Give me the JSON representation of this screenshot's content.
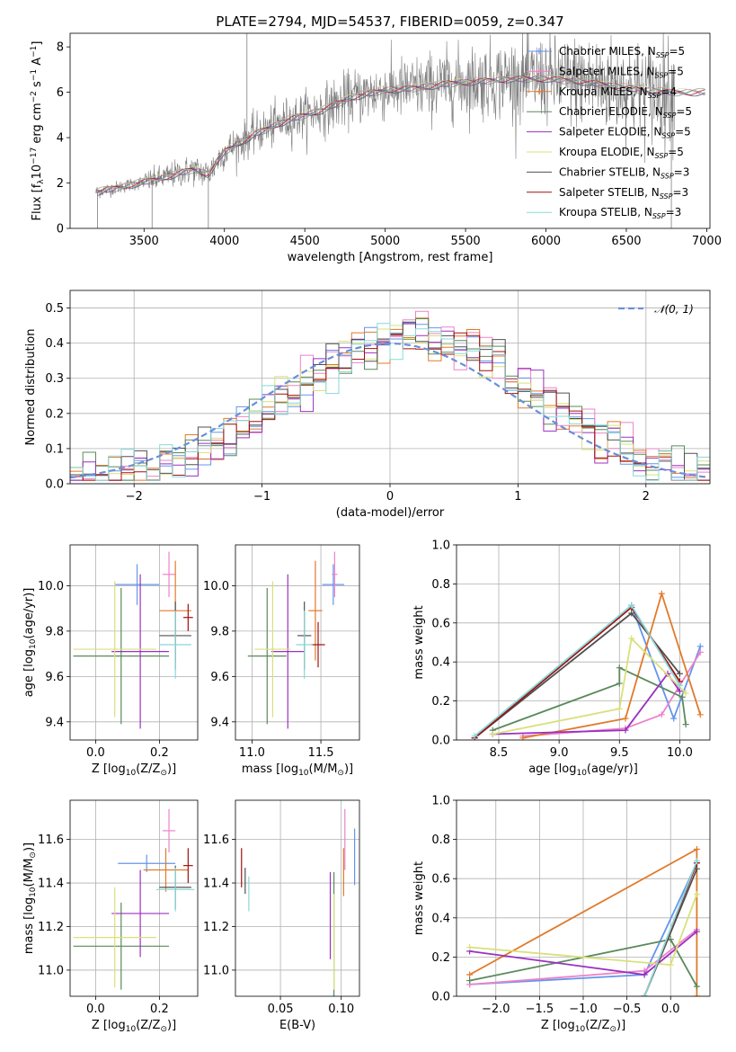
{
  "title": "PLATE=2794, MJD=54537, FIBERID=0059, z=0.347",
  "colors": {
    "Chabrier MILES": "#6495ed",
    "Salpeter MILES": "#ee82c8",
    "Kroupa MILES": "#e07a2a",
    "Chabrier ELODIE": "#5a8a5a",
    "Salpeter ELODIE": "#9b30c0",
    "Kroupa ELODIE": "#d9e07a",
    "Chabrier STELIB": "#505050",
    "Salpeter STELIB": "#a01010",
    "Kroupa STELIB": "#88d8d8",
    "data": "#7f7f7f",
    "normal": "#6a8fd8"
  },
  "legend_spectrum": [
    {
      "prefix": "Chabrier MILES, N",
      "sub": "SSP",
      "suffix": "=5",
      "model": "Chabrier MILES",
      "marker": "+"
    },
    {
      "prefix": "Salpeter MILES, N",
      "sub": "SSP",
      "suffix": "=5",
      "model": "Salpeter MILES",
      "marker": "+"
    },
    {
      "prefix": "Kroupa MILES, N",
      "sub": "SSP",
      "suffix": "=4",
      "model": "Kroupa MILES",
      "marker": "+"
    },
    {
      "prefix": "Chabrier ELODIE, N",
      "sub": "SSP",
      "suffix": "=5",
      "model": "Chabrier ELODIE",
      "marker": ""
    },
    {
      "prefix": "Salpeter ELODIE, N",
      "sub": "SSP",
      "suffix": "=5",
      "model": "Salpeter ELODIE",
      "marker": ""
    },
    {
      "prefix": "Kroupa ELODIE, N",
      "sub": "SSP",
      "suffix": "=5",
      "model": "Kroupa ELODIE",
      "marker": ""
    },
    {
      "prefix": "Chabrier STELIB, N",
      "sub": "SSP",
      "suffix": "=3",
      "model": "Chabrier STELIB",
      "marker": ""
    },
    {
      "prefix": "Salpeter STELIB, N",
      "sub": "SSP",
      "suffix": "=3",
      "model": "Salpeter STELIB",
      "marker": ""
    },
    {
      "prefix": "Kroupa STELIB, N",
      "sub": "SSP",
      "suffix": "=3",
      "model": "Kroupa STELIB",
      "marker": ""
    }
  ],
  "chart_data": [
    {
      "id": "spectrum",
      "type": "line",
      "xlabel": "wavelength [Angstrom, rest frame]",
      "ylabel_parts": [
        "Flux [f",
        "λ",
        "10",
        "−17",
        " erg cm",
        "−2",
        " s",
        "−1",
        " A",
        "−1",
        "]"
      ],
      "xlim": [
        3040,
        7020
      ],
      "ylim": [
        0,
        8.6
      ],
      "xticks": [
        3500,
        4000,
        4500,
        5000,
        5500,
        6000,
        6500,
        7000
      ],
      "yticks": [
        0,
        2,
        4,
        6,
        8
      ],
      "continuum_points": [
        [
          3200,
          1.6
        ],
        [
          3400,
          1.9
        ],
        [
          3600,
          2.2
        ],
        [
          3800,
          2.6
        ],
        [
          3900,
          2.4
        ],
        [
          4000,
          3.4
        ],
        [
          4200,
          4.2
        ],
        [
          4400,
          4.8
        ],
        [
          4600,
          5.2
        ],
        [
          4800,
          5.8
        ],
        [
          5000,
          6.1
        ],
        [
          5200,
          6.2
        ],
        [
          5400,
          6.4
        ],
        [
          5600,
          6.5
        ],
        [
          5800,
          6.6
        ],
        [
          6000,
          6.6
        ],
        [
          6200,
          6.5
        ],
        [
          6400,
          6.3
        ],
        [
          6600,
          6.1
        ],
        [
          6800,
          6.0
        ],
        [
          7000,
          6.0
        ]
      ],
      "model_range": [
        3210,
        6990
      ],
      "data_range": [
        3200,
        6800
      ],
      "outlier_spikes": [
        [
          3210,
          0
        ],
        [
          3550,
          0
        ],
        [
          3900,
          0
        ],
        [
          4140,
          8.6
        ],
        [
          6780,
          0
        ]
      ]
    },
    {
      "id": "residuals",
      "type": "line",
      "xlabel": "(data-model)/error",
      "ylabel": "Normed distribution",
      "xlim": [
        -2.5,
        2.5
      ],
      "ylim": [
        0,
        0.55
      ],
      "xticks": [
        -2,
        -1,
        0,
        1,
        2
      ],
      "yticks": [
        0.0,
        0.1,
        0.2,
        0.3,
        0.4,
        0.5
      ],
      "legend_label": "𝒩(0, 1)",
      "normal_mean": 0.0,
      "normal_sigma": 1.0,
      "hist_bin_width": 0.1,
      "hist_peak_shift": 0.32,
      "hist_peak": 0.5
    },
    {
      "id": "z_age",
      "type": "scatter",
      "xlabel_parts": [
        "Z [log",
        "10",
        "(Z/Z",
        "⊙",
        ")]"
      ],
      "ylabel_parts": [
        "age  [log",
        "10",
        "(age/yr)]"
      ],
      "xlim": [
        -0.08,
        0.32
      ],
      "ylim": [
        9.32,
        10.18
      ],
      "xticks": [
        0.0,
        0.2
      ],
      "yticks": [
        9.4,
        9.6,
        9.8,
        10.0
      ],
      "points": [
        {
          "model": "Chabrier MILES",
          "x": 0.13,
          "y": 10.005,
          "xerr": 0.07,
          "yerr": 0.09
        },
        {
          "model": "Salpeter MILES",
          "x": 0.23,
          "y": 10.05,
          "xerr": 0.02,
          "yerr": 0.1
        },
        {
          "model": "Kroupa MILES",
          "x": 0.25,
          "y": 9.89,
          "xerr": 0.05,
          "yerr": 0.22
        },
        {
          "model": "Chabrier ELODIE",
          "x": 0.08,
          "y": 9.69,
          "xerr": 0.15,
          "yerr": 0.3
        },
        {
          "model": "Salpeter ELODIE",
          "x": 0.14,
          "y": 9.71,
          "xerr": 0.09,
          "yerr": 0.34
        },
        {
          "model": "Kroupa ELODIE",
          "x": 0.06,
          "y": 9.72,
          "xerr": 0.13,
          "yerr": 0.3
        },
        {
          "model": "Chabrier STELIB",
          "x": 0.25,
          "y": 9.78,
          "xerr": 0.05,
          "yerr": 0.15
        },
        {
          "model": "Salpeter STELIB",
          "x": 0.29,
          "y": 9.86,
          "xerr": 0.015,
          "yerr": 0.06
        },
        {
          "model": "Kroupa STELIB",
          "x": 0.25,
          "y": 9.74,
          "xerr": 0.05,
          "yerr": 0.15
        }
      ]
    },
    {
      "id": "mass_age",
      "type": "scatter",
      "xlabel_parts": [
        "mass [log",
        "10",
        "(M/M",
        "⊙",
        ")]"
      ],
      "ylabel_parts": [],
      "xlim": [
        10.88,
        11.78
      ],
      "ylim": [
        9.32,
        10.18
      ],
      "xticks": [
        11.0,
        11.5
      ],
      "yticks": [
        9.4,
        9.6,
        9.8,
        10.0
      ],
      "points": [
        {
          "model": "Chabrier MILES",
          "x": 11.59,
          "y": 10.005,
          "xerr": 0.08,
          "yerr": 0.09
        },
        {
          "model": "Salpeter MILES",
          "x": 11.6,
          "y": 10.05,
          "xerr": 0.02,
          "yerr": 0.1
        },
        {
          "model": "Kroupa MILES",
          "x": 11.46,
          "y": 9.89,
          "xerr": 0.05,
          "yerr": 0.22
        },
        {
          "model": "Chabrier ELODIE",
          "x": 11.11,
          "y": 9.69,
          "xerr": 0.14,
          "yerr": 0.3
        },
        {
          "model": "Salpeter ELODIE",
          "x": 11.26,
          "y": 9.71,
          "xerr": 0.12,
          "yerr": 0.34
        },
        {
          "model": "Kroupa ELODIE",
          "x": 11.15,
          "y": 9.72,
          "xerr": 0.13,
          "yerr": 0.3
        },
        {
          "model": "Chabrier STELIB",
          "x": 11.38,
          "y": 9.78,
          "xerr": 0.05,
          "yerr": 0.15
        },
        {
          "model": "Salpeter STELIB",
          "x": 11.48,
          "y": 9.74,
          "xerr": 0.05,
          "yerr": 0.1
        },
        {
          "model": "Kroupa STELIB",
          "x": 11.38,
          "y": 9.74,
          "xerr": 0.06,
          "yerr": 0.15
        }
      ]
    },
    {
      "id": "age_weight",
      "type": "line",
      "xlabel_parts": [
        "age  [log",
        "10",
        "(age/yr)]"
      ],
      "ylabel": "mass weight",
      "xlim": [
        8.15,
        10.25
      ],
      "ylim": [
        0,
        1
      ],
      "xticks": [
        8.5,
        9.0,
        9.5,
        10.0
      ],
      "yticks": [
        0.0,
        0.2,
        0.4,
        0.6,
        0.8,
        1.0
      ],
      "series": [
        {
          "model": "Chabrier MILES",
          "x": [
            8.3,
            9.6,
            9.95,
            10.17
          ],
          "y": [
            0.01,
            0.69,
            0.11,
            0.48
          ]
        },
        {
          "model": "Salpeter MILES",
          "x": [
            8.7,
            9.55,
            9.85,
            10.17
          ],
          "y": [
            0.02,
            0.06,
            0.13,
            0.45
          ]
        },
        {
          "model": "Kroupa MILES",
          "x": [
            8.7,
            9.55,
            9.85,
            10.17
          ],
          "y": [
            0.01,
            0.11,
            0.75,
            0.13
          ]
        },
        {
          "model": "Chabrier ELODIE",
          "x": [
            8.45,
            9.5,
            9.5,
            10.02,
            10.05
          ],
          "y": [
            0.05,
            0.29,
            0.37,
            0.22,
            0.08
          ]
        },
        {
          "model": "Salpeter ELODIE",
          "x": [
            8.45,
            9.55,
            9.9,
            10.0
          ],
          "y": [
            0.03,
            0.05,
            0.34,
            0.25
          ]
        },
        {
          "model": "Kroupa ELODIE",
          "x": [
            8.45,
            9.5,
            9.6,
            10.05
          ],
          "y": [
            0.03,
            0.16,
            0.52,
            0.24
          ]
        },
        {
          "model": "Chabrier STELIB",
          "x": [
            8.3,
            9.6,
            10.0
          ],
          "y": [
            0.01,
            0.65,
            0.34
          ]
        },
        {
          "model": "Salpeter STELIB",
          "x": [
            8.3,
            9.6,
            10.0
          ],
          "y": [
            0.01,
            0.68,
            0.3
          ]
        },
        {
          "model": "Kroupa STELIB",
          "x": [
            8.3,
            9.6,
            10.0
          ],
          "y": [
            0.02,
            0.69,
            0.28
          ]
        }
      ]
    },
    {
      "id": "z_mass",
      "type": "scatter",
      "xlabel_parts": [
        "Z [log",
        "10",
        "(Z/Z",
        "⊙",
        ")]"
      ],
      "ylabel_parts": [
        "mass [log",
        "10",
        "(M/M",
        "⊙",
        ")]"
      ],
      "xlim": [
        -0.08,
        0.32
      ],
      "ylim": [
        10.88,
        11.78
      ],
      "xticks": [
        0.0,
        0.2
      ],
      "yticks": [
        11.0,
        11.2,
        11.4,
        11.6
      ],
      "points": [
        {
          "model": "Chabrier MILES",
          "x": 0.16,
          "y": 11.49,
          "xerr": 0.09,
          "yerr": 0.04
        },
        {
          "model": "Salpeter MILES",
          "x": 0.23,
          "y": 11.64,
          "xerr": 0.02,
          "yerr": 0.1
        },
        {
          "model": "Kroupa MILES",
          "x": 0.22,
          "y": 11.46,
          "xerr": 0.07,
          "yerr": 0.1
        },
        {
          "model": "Chabrier ELODIE",
          "x": 0.08,
          "y": 11.11,
          "xerr": 0.15,
          "yerr": 0.2
        },
        {
          "model": "Salpeter ELODIE",
          "x": 0.14,
          "y": 11.26,
          "xerr": 0.09,
          "yerr": 0.2
        },
        {
          "model": "Kroupa ELODIE",
          "x": 0.06,
          "y": 11.15,
          "xerr": 0.13,
          "yerr": 0.23
        },
        {
          "model": "Chabrier STELIB",
          "x": 0.25,
          "y": 11.38,
          "xerr": 0.05,
          "yerr": 0.1
        },
        {
          "model": "Salpeter STELIB",
          "x": 0.29,
          "y": 11.48,
          "xerr": 0.015,
          "yerr": 0.08
        },
        {
          "model": "Kroupa STELIB",
          "x": 0.25,
          "y": 11.37,
          "xerr": 0.06,
          "yerr": 0.1
        }
      ]
    },
    {
      "id": "ebv_mass",
      "type": "scatter",
      "xlabel": "E(B-V)",
      "xlim": [
        0.013,
        0.115
      ],
      "ylim": [
        10.88,
        11.78
      ],
      "xticks": [
        0.05,
        0.1
      ],
      "yticks": [
        11.0,
        11.2,
        11.4,
        11.6
      ],
      "points": [
        {
          "model": "Chabrier MILES",
          "x": 0.111,
          "y": 11.52,
          "xerr": 0,
          "yerr": 0.13
        },
        {
          "model": "Salpeter MILES",
          "x": 0.103,
          "y": 11.6,
          "xerr": 0,
          "yerr": 0.14
        },
        {
          "model": "Kroupa MILES",
          "x": 0.102,
          "y": 11.45,
          "xerr": 0,
          "yerr": 0.11
        },
        {
          "model": "Chabrier ELODIE",
          "x": 0.094,
          "y": 11.15,
          "xerr": 0,
          "yerr": 0.3
        },
        {
          "model": "Salpeter ELODIE",
          "x": 0.091,
          "y": 11.25,
          "xerr": 0,
          "yerr": 0.2
        },
        {
          "model": "Kroupa ELODIE",
          "x": 0.094,
          "y": 11.13,
          "xerr": 0,
          "yerr": 0.22
        },
        {
          "model": "Chabrier STELIB",
          "x": 0.021,
          "y": 11.41,
          "xerr": 0,
          "yerr": 0.06
        },
        {
          "model": "Salpeter STELIB",
          "x": 0.018,
          "y": 11.47,
          "xerr": 0,
          "yerr": 0.09
        },
        {
          "model": "Kroupa STELIB",
          "x": 0.024,
          "y": 11.35,
          "xerr": 0,
          "yerr": 0.08
        }
      ]
    },
    {
      "id": "z_weight",
      "type": "line",
      "xlabel_parts": [
        "Z [log",
        "10",
        "(Z/Z",
        "⊙",
        ")]"
      ],
      "ylabel": "mass weight",
      "xlim": [
        -2.45,
        0.45
      ],
      "ylim": [
        0,
        1
      ],
      "xticks": [
        -2.0,
        -1.5,
        -1.0,
        -0.5,
        0.0
      ],
      "yticks": [
        0.0,
        0.2,
        0.4,
        0.6,
        0.8,
        1.0
      ],
      "series": [
        {
          "model": "Chabrier MILES",
          "x": [
            -2.3,
            -0.3,
            0.3
          ],
          "y": [
            0.06,
            0.11,
            0.68
          ]
        },
        {
          "model": "Salpeter MILES",
          "x": [
            -2.3,
            -0.3,
            0.3
          ],
          "y": [
            0.06,
            0.13,
            0.34
          ]
        },
        {
          "model": "Kroupa MILES",
          "x": [
            -2.3,
            0.3,
            0.3
          ],
          "y": [
            0.11,
            0.75,
            0.0
          ]
        },
        {
          "model": "Chabrier ELODIE",
          "x": [
            -2.3,
            0.0,
            0.3
          ],
          "y": [
            0.08,
            0.29,
            0.05
          ]
        },
        {
          "model": "Salpeter ELODIE",
          "x": [
            -2.3,
            -0.3,
            0.3
          ],
          "y": [
            0.23,
            0.11,
            0.33
          ]
        },
        {
          "model": "Kroupa ELODIE",
          "x": [
            -2.3,
            0.0,
            0.3
          ],
          "y": [
            0.25,
            0.16,
            0.52
          ]
        },
        {
          "model": "Chabrier STELIB",
          "x": [
            -0.3,
            0.3
          ],
          "y": [
            0.0,
            0.65
          ]
        },
        {
          "model": "Salpeter STELIB",
          "x": [
            -0.3,
            0.3
          ],
          "y": [
            0.0,
            0.68
          ]
        },
        {
          "model": "Kroupa STELIB",
          "x": [
            -0.3,
            0.3
          ],
          "y": [
            0.0,
            0.69
          ]
        }
      ]
    }
  ]
}
